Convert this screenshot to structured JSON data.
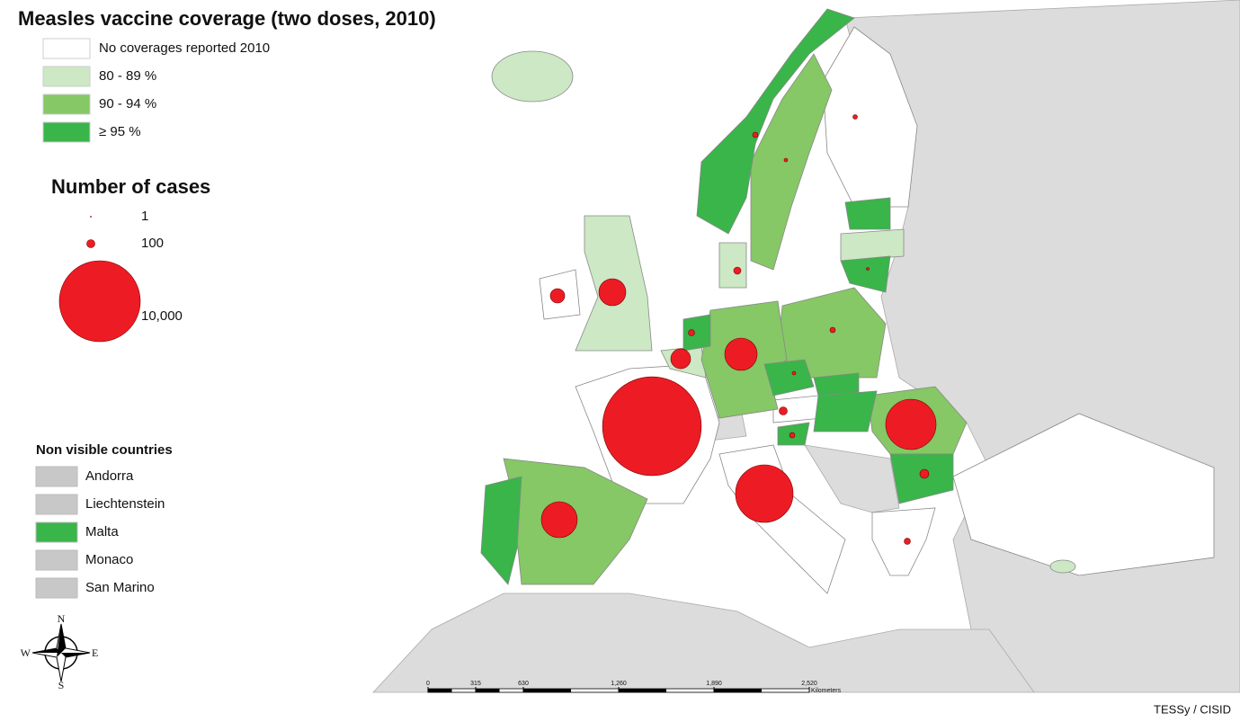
{
  "title": "Measles vaccine coverage (two doses, 2010)",
  "coverage_legend": [
    {
      "label": "No coverages reported 2010",
      "color": "#ffffff"
    },
    {
      "label": "80 - 89 %",
      "color": "#cce8c4"
    },
    {
      "label": "90 - 94 %",
      "color": "#86c766"
    },
    {
      "label": "≥ 95 %",
      "color": "#39b54a"
    }
  ],
  "cases_legend": {
    "title": "Number of cases",
    "sizes": [
      1,
      100,
      {
        "value": 10000,
        "label": "10,000"
      }
    ],
    "color": "#ed1c24"
  },
  "cases": [
    14900,
    5060,
    3870,
    1975,
    1600,
    1110,
    600,
    316,
    123,
    100,
    79,
    60,
    60,
    44,
    44,
    44,
    20,
    30,
    20,
    11
  ],
  "non_visible": {
    "title": "Non visible countries",
    "countries": [
      {
        "label": "Andorra",
        "color": "#c8c8c8"
      },
      {
        "label": "Liechtenstein",
        "color": "#c8c8c8"
      },
      {
        "label": "Malta",
        "color": "#39b54a"
      },
      {
        "label": "Monaco",
        "color": "#c8c8c8"
      },
      {
        "label": "San Marino",
        "color": "#c8c8c8"
      }
    ]
  },
  "scale": {
    "ticks": [
      0,
      315,
      630,
      {
        "value": 1260,
        "label": "1,260"
      },
      {
        "value": 1890,
        "label": "1,890"
      },
      {
        "value": 2520,
        "label": "2,520"
      }
    ],
    "unit": "Kilometers"
  },
  "compass": [
    "N",
    "E",
    "S",
    "W"
  ],
  "source": "TESSy / CISID"
}
